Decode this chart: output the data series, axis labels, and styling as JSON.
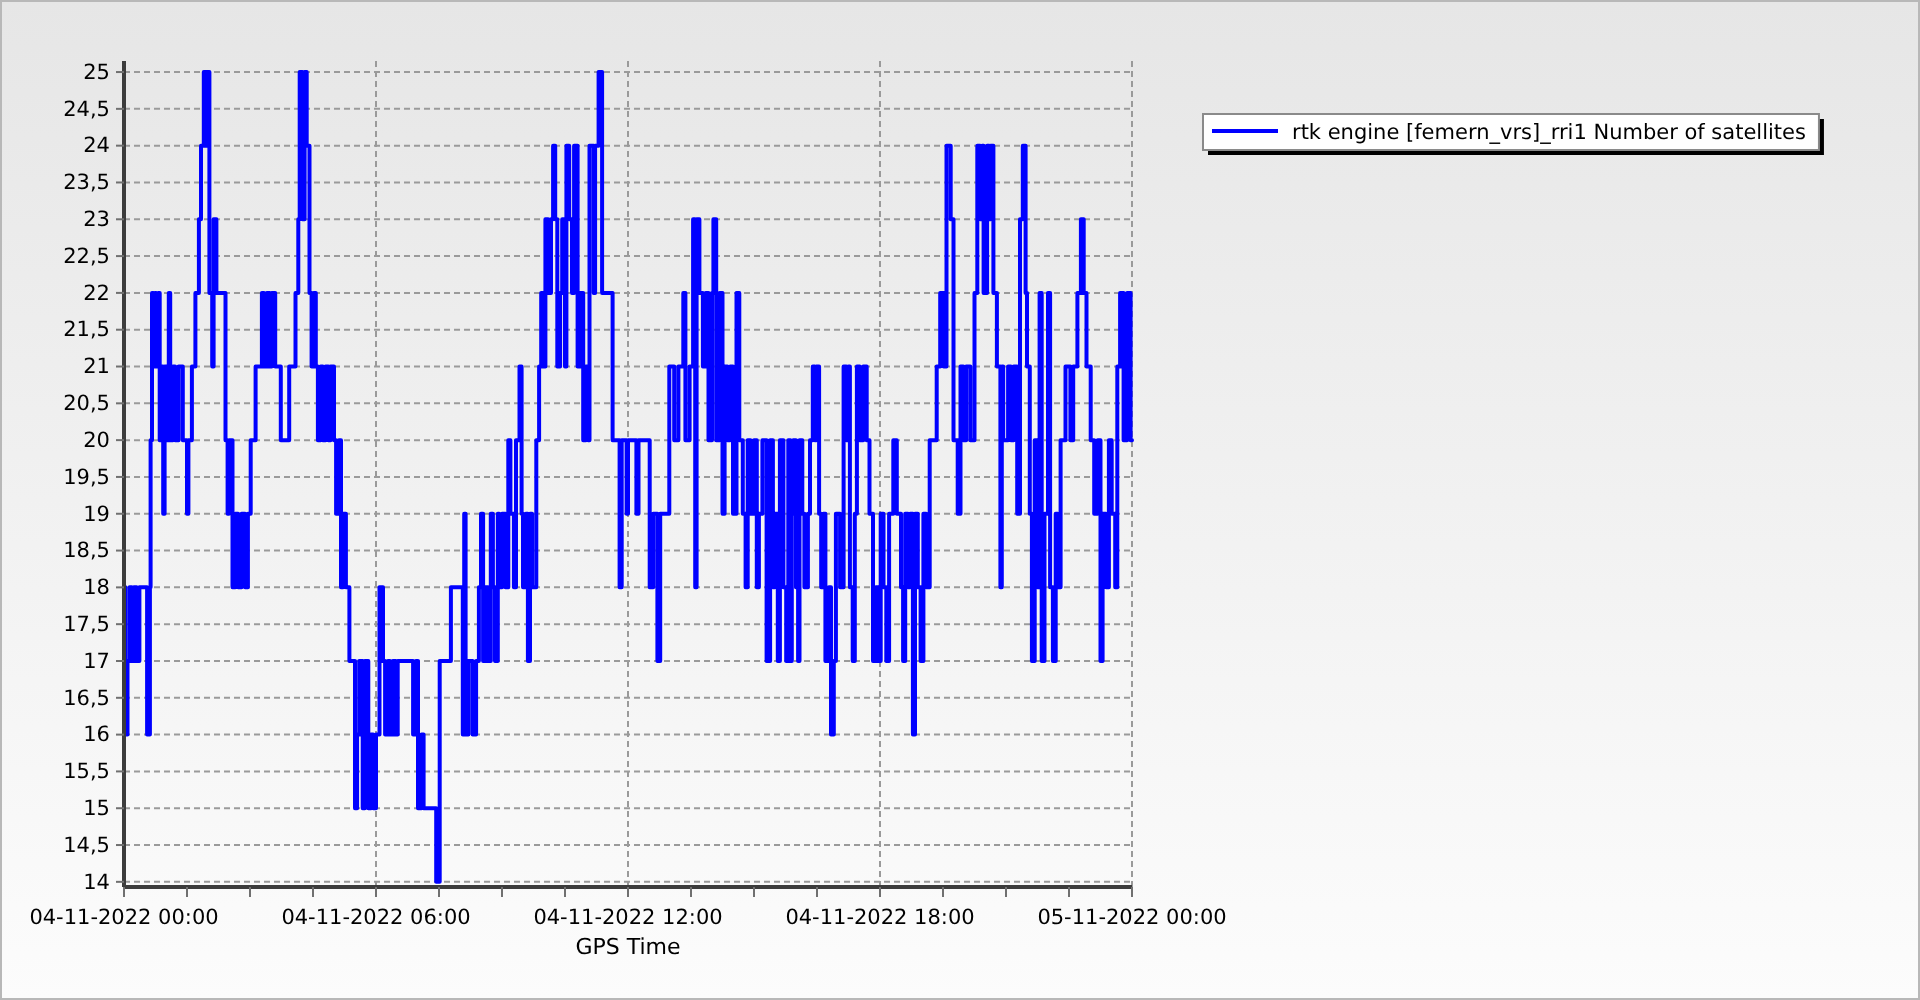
{
  "chart_data": {
    "type": "step",
    "xlabel": "GPS Time",
    "legend": "top right",
    "grid": true,
    "xlim": [
      "2022-11-04T00:00",
      "2022-11-05T00:00"
    ],
    "ylim": [
      13.93,
      25.15
    ],
    "xticks": [
      {
        "value": "2022-11-04T00:00",
        "label": "04-11-2022 00:00"
      },
      {
        "value": "2022-11-04T01:30",
        "label": null
      },
      {
        "value": "2022-11-04T03:00",
        "label": null
      },
      {
        "value": "2022-11-04T04:30",
        "label": null
      },
      {
        "value": "2022-11-04T06:00",
        "label": "04-11-2022 06:00"
      },
      {
        "value": "2022-11-04T07:30",
        "label": null
      },
      {
        "value": "2022-11-04T09:00",
        "label": null
      },
      {
        "value": "2022-11-04T10:30",
        "label": null
      },
      {
        "value": "2022-11-04T12:00",
        "label": "04-11-2022 12:00"
      },
      {
        "value": "2022-11-04T13:30",
        "label": null
      },
      {
        "value": "2022-11-04T15:00",
        "label": null
      },
      {
        "value": "2022-11-04T16:30",
        "label": null
      },
      {
        "value": "2022-11-04T18:00",
        "label": "04-11-2022 18:00"
      },
      {
        "value": "2022-11-04T19:30",
        "label": null
      },
      {
        "value": "2022-11-04T21:00",
        "label": null
      },
      {
        "value": "2022-11-04T22:30",
        "label": null
      },
      {
        "value": "2022-11-05T00:00",
        "label": "05-11-2022 00:00"
      }
    ],
    "yticks": [
      14,
      {
        "value": 14.5,
        "label": "14,5"
      },
      15,
      {
        "value": 15.5,
        "label": "15,5"
      },
      16,
      {
        "value": 16.5,
        "label": "16,5"
      },
      17,
      {
        "value": 17.5,
        "label": "17,5"
      },
      18,
      {
        "value": 18.5,
        "label": "18,5"
      },
      19,
      {
        "value": 19.5,
        "label": "19,5"
      },
      20,
      {
        "value": 20.5,
        "label": "20,5"
      },
      21,
      {
        "value": 21.5,
        "label": "21,5"
      },
      22,
      {
        "value": 22.5,
        "label": "22,5"
      },
      23,
      {
        "value": 23.5,
        "label": "23,5"
      },
      24,
      {
        "value": 24.5,
        "label": "24,5"
      },
      25
    ],
    "x": [
      "2022-11-04T00:00",
      "2022-11-04T00:02",
      "2022-11-04T00:05",
      "2022-11-04T00:08",
      "2022-11-04T00:11",
      "2022-11-04T00:14",
      "2022-11-04T00:18",
      "2022-11-04T00:22",
      "2022-11-04T00:33",
      "2022-11-04T00:37",
      "2022-11-04T00:38",
      "2022-11-04T00:40",
      "2022-11-04T00:42",
      "2022-11-04T00:44",
      "2022-11-04T00:46",
      "2022-11-04T00:49",
      "2022-11-04T00:51",
      "2022-11-04T00:53",
      "2022-11-04T00:56",
      "2022-11-04T00:58",
      "2022-11-04T01:01",
      "2022-11-04T01:04",
      "2022-11-04T01:06",
      "2022-11-04T01:10",
      "2022-11-04T01:13",
      "2022-11-04T01:18",
      "2022-11-04T01:24",
      "2022-11-04T01:30",
      "2022-11-04T01:32",
      "2022-11-04T01:37",
      "2022-11-04T01:42",
      "2022-11-04T01:47",
      "2022-11-04T01:50",
      "2022-11-04T01:54",
      "2022-11-04T01:58",
      "2022-11-04T02:00",
      "2022-11-04T02:02",
      "2022-11-04T02:06",
      "2022-11-04T02:08",
      "2022-11-04T02:12",
      "2022-11-04T02:25",
      "2022-11-04T02:28",
      "2022-11-04T02:30",
      "2022-11-04T02:35",
      "2022-11-04T02:39",
      "2022-11-04T02:43",
      "2022-11-04T02:48",
      "2022-11-04T02:53",
      "2022-11-04T02:57",
      "2022-11-04T03:01",
      "2022-11-04T03:08",
      "2022-11-04T03:17",
      "2022-11-04T03:20",
      "2022-11-04T03:24",
      "2022-11-04T03:28",
      "2022-11-04T03:31",
      "2022-11-04T03:36",
      "2022-11-04T03:44",
      "2022-11-04T03:56",
      "2022-11-04T04:05",
      "2022-11-04T04:09",
      "2022-11-04T04:11",
      "2022-11-04T04:15",
      "2022-11-04T04:18",
      "2022-11-04T04:21",
      "2022-11-04T04:25",
      "2022-11-04T04:28",
      "2022-11-04T04:31",
      "2022-11-04T04:34",
      "2022-11-04T04:37",
      "2022-11-04T04:41",
      "2022-11-04T04:44",
      "2022-11-04T04:48",
      "2022-11-04T04:52",
      "2022-11-04T04:55",
      "2022-11-04T05:00",
      "2022-11-04T05:03",
      "2022-11-04T05:07",
      "2022-11-04T05:10",
      "2022-11-04T05:13",
      "2022-11-04T05:17",
      "2022-11-04T05:22",
      "2022-11-04T05:30",
      "2022-11-04T05:33",
      "2022-11-04T05:36",
      "2022-11-04T05:41",
      "2022-11-04T05:44",
      "2022-11-04T05:49",
      "2022-11-04T05:53",
      "2022-11-04T05:56",
      "2022-11-04T06:00",
      "2022-11-04T06:05",
      "2022-11-04T06:10",
      "2022-11-04T06:13",
      "2022-11-04T06:17",
      "2022-11-04T06:20",
      "2022-11-04T06:24",
      "2022-11-04T06:28",
      "2022-11-04T06:31",
      "2022-11-04T06:53",
      "2022-11-04T06:57",
      "2022-11-04T07:00",
      "2022-11-04T07:05",
      "2022-11-04T07:08",
      "2022-11-04T07:26",
      "2022-11-04T07:31",
      "2022-11-04T07:47",
      "2022-11-04T08:04",
      "2022-11-04T08:06",
      "2022-11-04T08:08",
      "2022-11-04T08:12",
      "2022-11-04T08:18",
      "2022-11-04T08:23",
      "2022-11-04T08:27",
      "2022-11-04T08:30",
      "2022-11-04T08:33",
      "2022-11-04T08:36",
      "2022-11-04T08:40",
      "2022-11-04T08:44",
      "2022-11-04T08:47",
      "2022-11-04T08:50",
      "2022-11-04T08:54",
      "2022-11-04T08:56",
      "2022-11-04T09:00",
      "2022-11-04T09:05",
      "2022-11-04T09:09",
      "2022-11-04T09:12",
      "2022-11-04T09:17",
      "2022-11-04T09:20",
      "2022-11-04T09:25",
      "2022-11-04T09:28",
      "2022-11-04T09:30",
      "2022-11-04T09:34",
      "2022-11-04T09:37",
      "2022-11-04T09:40",
      "2022-11-04T09:43",
      "2022-11-04T09:49",
      "2022-11-04T09:53",
      "2022-11-04T09:56",
      "2022-11-04T09:59",
      "2022-11-04T10:02",
      "2022-11-04T10:06",
      "2022-11-04T10:10",
      "2022-11-04T10:13",
      "2022-11-04T10:16",
      "2022-11-04T10:19",
      "2022-11-04T10:23",
      "2022-11-04T10:26",
      "2022-11-04T10:30",
      "2022-11-04T10:32",
      "2022-11-04T10:36",
      "2022-11-04T10:40",
      "2022-11-04T10:43",
      "2022-11-04T10:48",
      "2022-11-04T10:51",
      "2022-11-04T10:56",
      "2022-11-04T11:00",
      "2022-11-04T11:03",
      "2022-11-04T11:05",
      "2022-11-04T11:11",
      "2022-11-04T11:13",
      "2022-11-04T11:18",
      "2022-11-04T11:23",
      "2022-11-04T11:38",
      "2022-11-04T11:48",
      "2022-11-04T11:51",
      "2022-11-04T11:58",
      "2022-11-04T12:00",
      "2022-11-04T12:12",
      "2022-11-04T12:15",
      "2022-11-04T12:31",
      "2022-11-04T12:36",
      "2022-11-04T12:42",
      "2022-11-04T12:46",
      "2022-11-04T12:59",
      "2022-11-04T13:06",
      "2022-11-04T13:12",
      "2022-11-04T13:19",
      "2022-11-04T13:22",
      "2022-11-04T13:28",
      "2022-11-04T13:33",
      "2022-11-04T13:36",
      "2022-11-04T13:38",
      "2022-11-04T13:42",
      "2022-11-04T13:47",
      "2022-11-04T13:51",
      "2022-11-04T13:55",
      "2022-11-04T14:00",
      "2022-11-04T14:02",
      "2022-11-04T14:06",
      "2022-11-04T14:11",
      "2022-11-04T14:15",
      "2022-11-04T14:18",
      "2022-11-04T14:22",
      "2022-11-04T14:26",
      "2022-11-04T14:30",
      "2022-11-04T14:35",
      "2022-11-04T14:39",
      "2022-11-04T14:44",
      "2022-11-04T14:48",
      "2022-11-04T14:51",
      "2022-11-04T14:55",
      "2022-11-04T15:00",
      "2022-11-04T15:04",
      "2022-11-04T15:07",
      "2022-11-04T15:12",
      "2022-11-04T15:18",
      "2022-11-04T15:23",
      "2022-11-04T15:27",
      "2022-11-04T15:30",
      "2022-11-04T15:34",
      "2022-11-04T15:37",
      "2022-11-04T15:42",
      "2022-11-04T15:46",
      "2022-11-04T15:49",
      "2022-11-04T15:52",
      "2022-11-04T15:54",
      "2022-11-04T15:56",
      "2022-11-04T16:00",
      "2022-11-04T16:03",
      "2022-11-04T16:05",
      "2022-11-04T16:09",
      "2022-11-04T16:12",
      "2022-11-04T16:17",
      "2022-11-04T16:20",
      "2022-11-04T16:24",
      "2022-11-04T16:27",
      "2022-11-04T16:29",
      "2022-11-04T16:33",
      "2022-11-04T16:36",
      "2022-11-04T16:39",
      "2022-11-04T16:42",
      "2022-11-04T16:47",
      "2022-11-04T16:50",
      "2022-11-04T16:54",
      "2022-11-04T16:57",
      "2022-11-04T17:03",
      "2022-11-04T17:08",
      "2022-11-04T17:12",
      "2022-11-04T17:15",
      "2022-11-04T17:17",
      "2022-11-04T17:21",
      "2022-11-04T17:24",
      "2022-11-04T17:27",
      "2022-11-04T17:31",
      "2022-11-04T17:36",
      "2022-11-04T17:41",
      "2022-11-04T17:45",
      "2022-11-04T17:50",
      "2022-11-04T17:54",
      "2022-11-04T17:58",
      "2022-11-04T18:01",
      "2022-11-04T18:05",
      "2022-11-04T18:09",
      "2022-11-04T18:13",
      "2022-11-04T18:19",
      "2022-11-04T18:24",
      "2022-11-04T18:30",
      "2022-11-04T18:33",
      "2022-11-04T18:36",
      "2022-11-04T18:40",
      "2022-11-04T18:43",
      "2022-11-04T18:47",
      "2022-11-04T18:50",
      "2022-11-04T18:54",
      "2022-11-04T18:58",
      "2022-11-04T19:02",
      "2022-11-04T19:06",
      "2022-11-04T19:11",
      "2022-11-04T19:21",
      "2022-11-04T19:26",
      "2022-11-04T19:31",
      "2022-11-04T19:35",
      "2022-11-04T19:41",
      "2022-11-04T19:45",
      "2022-11-04T19:51",
      "2022-11-04T19:55",
      "2022-11-04T19:59",
      "2022-11-04T20:03",
      "2022-11-04T20:09",
      "2022-11-04T20:15",
      "2022-11-04T20:19",
      "2022-11-04T20:23",
      "2022-11-04T20:26",
      "2022-11-04T20:28",
      "2022-11-04T20:33",
      "2022-11-04T20:36",
      "2022-11-04T20:38",
      "2022-11-04T20:42",
      "2022-11-04T20:47",
      "2022-11-04T20:52",
      "2022-11-04T20:54",
      "2022-11-04T20:56",
      "2022-11-04T21:03",
      "2022-11-04T21:07",
      "2022-11-04T21:11",
      "2022-11-04T21:16",
      "2022-11-04T21:20",
      "2022-11-04T21:24",
      "2022-11-04T21:28",
      "2022-11-04T21:30",
      "2022-11-04T21:34",
      "2022-11-04T21:37",
      "2022-11-04T21:41",
      "2022-11-04T21:45",
      "2022-11-04T21:48",
      "2022-11-04T21:51",
      "2022-11-04T21:55",
      "2022-11-04T22:00",
      "2022-11-04T22:03",
      "2022-11-04T22:07",
      "2022-11-04T22:11",
      "2022-11-04T22:14",
      "2022-11-04T22:18",
      "2022-11-04T22:25",
      "2022-11-04T22:32",
      "2022-11-04T22:36",
      "2022-11-04T22:42",
      "2022-11-04T22:47",
      "2022-11-04T22:51",
      "2022-11-04T22:55",
      "2022-11-04T23:01",
      "2022-11-04T23:06",
      "2022-11-04T23:11",
      "2022-11-04T23:15",
      "2022-11-04T23:18",
      "2022-11-04T23:23",
      "2022-11-04T23:27",
      "2022-11-04T23:31",
      "2022-11-04T23:36",
      "2022-11-04T23:39",
      "2022-11-04T23:43",
      "2022-11-04T23:48",
      "2022-11-04T23:53",
      "2022-11-04T23:58",
      "2022-11-05T00:00"
    ],
    "series": [
      {
        "name": "rtk engine [femern_vrs]_rri1 Number of satellites",
        "color": "#0000ff",
        "values": [
          18,
          16,
          17,
          18,
          17,
          18,
          17,
          18,
          16,
          18,
          20,
          22,
          21,
          22,
          21,
          22,
          20,
          21,
          19,
          21,
          20,
          22,
          20,
          21,
          20,
          21,
          20,
          19,
          20,
          21,
          22,
          23,
          24,
          25,
          24,
          25,
          22,
          21,
          23,
          22,
          20,
          19,
          20,
          18,
          19,
          18,
          19,
          18,
          19,
          20,
          21,
          22,
          21,
          22,
          21,
          22,
          21,
          20,
          21,
          22,
          23,
          25,
          23,
          25,
          24,
          22,
          21,
          22,
          21,
          20,
          21,
          20,
          21,
          20,
          21,
          20,
          19,
          20,
          18,
          19,
          18,
          17,
          15,
          16,
          17,
          15,
          17,
          15,
          16,
          15,
          16,
          18,
          17,
          16,
          17,
          16,
          17,
          16,
          17,
          16,
          17,
          15,
          16,
          15,
          14,
          17,
          18,
          16,
          19,
          16,
          17,
          16,
          17,
          18,
          19,
          17,
          18,
          17,
          19,
          18,
          17,
          19,
          18,
          19,
          18,
          20,
          19,
          18,
          20,
          21,
          19,
          18,
          19,
          17,
          19,
          18,
          20,
          21,
          22,
          21,
          23,
          22,
          23,
          24,
          23,
          21,
          22,
          23,
          21,
          24,
          23,
          22,
          24,
          21,
          22,
          20,
          21,
          20,
          24,
          22,
          24,
          25,
          22,
          20,
          18,
          20,
          19,
          20,
          19,
          20,
          18,
          19,
          17,
          19,
          21,
          20,
          21,
          22,
          20,
          21,
          23,
          18,
          23,
          22,
          21,
          22,
          20,
          22,
          23,
          20,
          22,
          19,
          21,
          20,
          21,
          19,
          22,
          20,
          19,
          18,
          20,
          19,
          20,
          18,
          19,
          20,
          17,
          20,
          18,
          19,
          17,
          20,
          18,
          17,
          20,
          17,
          19,
          20,
          18,
          17,
          20,
          19,
          18,
          19,
          20,
          21,
          20,
          21,
          19,
          18,
          19,
          17,
          18,
          16,
          17,
          19,
          18,
          21,
          20,
          21,
          18,
          17,
          19,
          21,
          20,
          21,
          20,
          19,
          17,
          18,
          17,
          19,
          18,
          17,
          19,
          20,
          19,
          18,
          17,
          19,
          18,
          19,
          16,
          19,
          18,
          17,
          19,
          18,
          20,
          21,
          22,
          21,
          24,
          23,
          20,
          19,
          21,
          20,
          21,
          20,
          22,
          24,
          23,
          24,
          22,
          24,
          23,
          24,
          22,
          21,
          18,
          21,
          20,
          21,
          20,
          21,
          19,
          23,
          24,
          22,
          21,
          19,
          17,
          20,
          18,
          22,
          17,
          19,
          22,
          18,
          17,
          19,
          18,
          20,
          21,
          20,
          21,
          22,
          23,
          22,
          21,
          20,
          19,
          20,
          17,
          19,
          18,
          20,
          19,
          18,
          21,
          22,
          20,
          22,
          20,
          20
        ]
      }
    ]
  }
}
